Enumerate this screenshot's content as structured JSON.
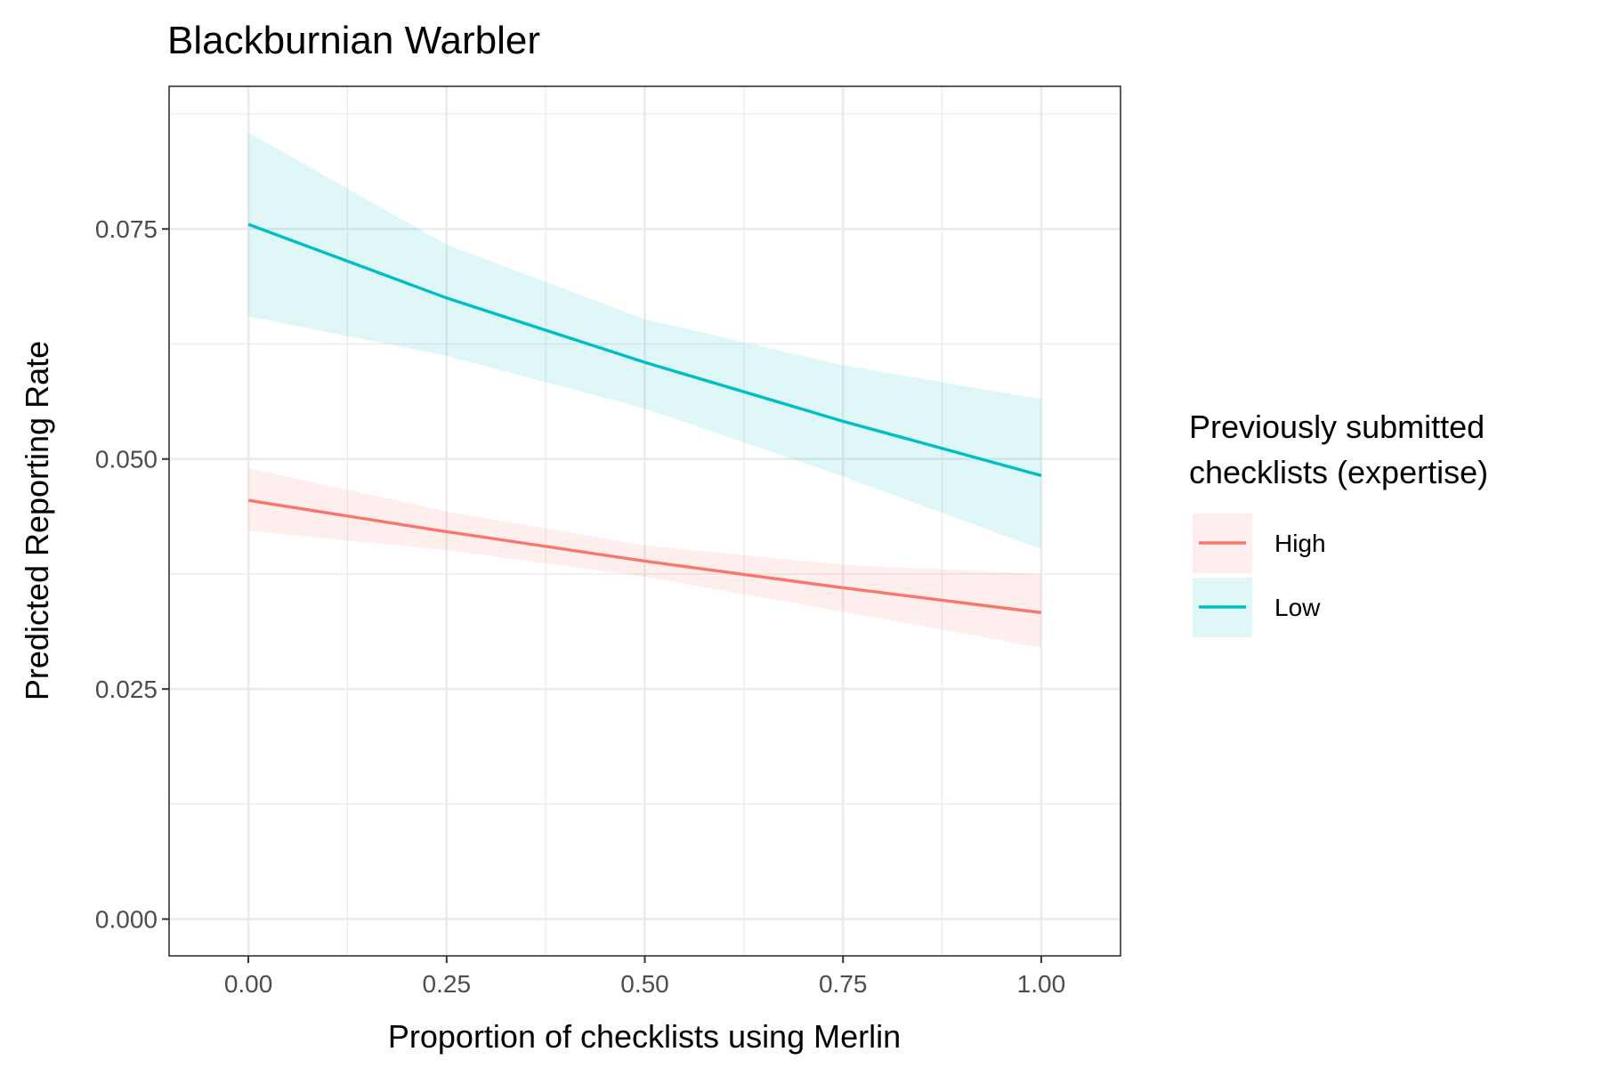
{
  "chart_data": {
    "type": "line",
    "title": "Blackburnian Warbler",
    "xlabel": "Proportion of checklists using Merlin",
    "ylabel": "Predicted Reporting Rate",
    "xlim": [
      -0.1,
      1.1
    ],
    "ylim": [
      -0.004,
      0.0905
    ],
    "x_ticks": [
      0.0,
      0.25,
      0.5,
      0.75,
      1.0
    ],
    "x_tick_labels": [
      "0.00",
      "0.25",
      "0.50",
      "0.75",
      "1.00"
    ],
    "y_ticks": [
      0.0,
      0.025,
      0.05,
      0.075
    ],
    "y_tick_labels": [
      "0.000",
      "0.025",
      "0.050",
      "0.075"
    ],
    "grid": true,
    "legend": {
      "title": "Previously submitted checklists (expertise)",
      "title_lines": [
        "Previously submitted",
        "checklists (expertise)"
      ],
      "placement": "right"
    },
    "x": [
      0.0,
      0.25,
      0.5,
      0.75,
      1.0
    ],
    "series": [
      {
        "name": "High",
        "color": "#F8766D",
        "values": [
          0.0455,
          0.0421,
          0.0389,
          0.036,
          0.0333
        ],
        "lower": [
          0.0422,
          0.0401,
          0.0372,
          0.0334,
          0.0295
        ],
        "upper": [
          0.049,
          0.0443,
          0.0406,
          0.0385,
          0.0375
        ]
      },
      {
        "name": "Low",
        "color": "#00BFC4",
        "values": [
          0.0755,
          0.0675,
          0.0605,
          0.0541,
          0.0482
        ],
        "lower": [
          0.0655,
          0.0612,
          0.0555,
          0.0481,
          0.0402
        ],
        "upper": [
          0.0855,
          0.0733,
          0.0652,
          0.0602,
          0.0565
        ]
      }
    ]
  }
}
